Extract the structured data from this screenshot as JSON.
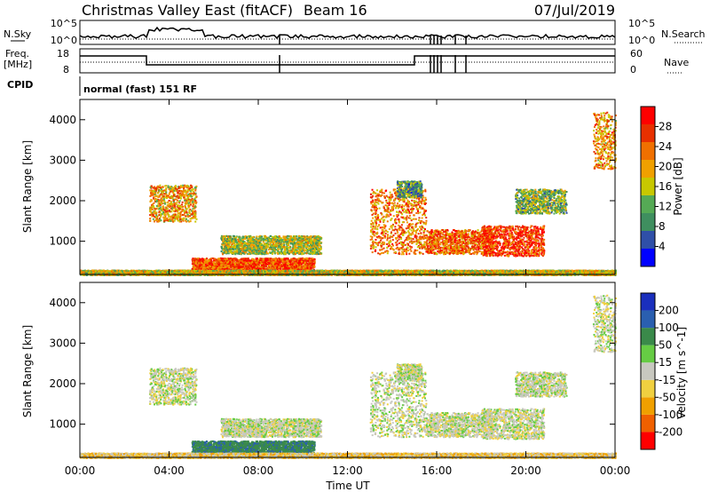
{
  "header": {
    "title": "Christmas Valley East (fitACF)",
    "beam": "Beam 16",
    "date": "07/Jul/2019"
  },
  "top_panels": {
    "nsky_label": "N.Sky",
    "nsearch_label": "N.Search",
    "noise_ticks": [
      "10^5",
      "10^0"
    ],
    "freq_label_1": "Freq.",
    "freq_label_2": "[MHz]",
    "freq_ticks": [
      "18",
      "8"
    ],
    "nave_label": "Nave",
    "nave_ticks": [
      "60",
      "0"
    ],
    "cpid_label": "CPID",
    "cpid_value": "normal (fast) 151 RF"
  },
  "colors": {
    "power": [
      "#0000ff",
      "#2f4fa8",
      "#3f8f5f",
      "#55aa55",
      "#c8c800",
      "#f0a000",
      "#f07000",
      "#e83000",
      "#ff0000"
    ],
    "velocity": [
      "#1a2fbd",
      "#2a5fb0",
      "#3a8a4a",
      "#66cc44",
      "#c8c8c0",
      "#f0d040",
      "#f0a000",
      "#f06000",
      "#ff0000"
    ],
    "ground": "#c8c8c0"
  },
  "chart_data": [
    {
      "type": "heatmap",
      "ylabel": "Slant Range [km]",
      "y_ticks": [
        "1000",
        "2000",
        "3000",
        "4000"
      ],
      "ylim": [
        180,
        4500
      ],
      "colorbar_label": "Power [dB]",
      "colorbar_ticks": [
        "4",
        "8",
        "12",
        "16",
        "20",
        "24",
        "28"
      ],
      "colorbar_range": [
        0,
        30
      ]
    },
    {
      "type": "heatmap",
      "ylabel": "Slant Range [km]",
      "y_ticks": [
        "1000",
        "2000",
        "3000",
        "4000"
      ],
      "ylim": [
        180,
        4500
      ],
      "colorbar_label": "Velocity [m s^-1]",
      "colorbar_ticks": [
        "200",
        "100",
        "50",
        "15",
        "-15",
        "-50",
        "-100",
        "-200"
      ],
      "xlabel": "Time UT",
      "x_ticks": [
        "00:00",
        "04:00",
        "08:00",
        "12:00",
        "16:00",
        "20:00",
        "00:00"
      ],
      "xlim": [
        0,
        24
      ]
    }
  ],
  "echo_regions": [
    {
      "t0": 5.0,
      "t1": 10.5,
      "r0": 300,
      "r1": 600,
      "p": 24,
      "v": 60
    },
    {
      "t0": 6.3,
      "t1": 10.8,
      "r0": 700,
      "r1": 1150,
      "p": 14,
      "v": 0
    },
    {
      "t0": 3.1,
      "t1": 5.2,
      "r0": 1500,
      "r1": 2400,
      "p": 19,
      "v": 0
    },
    {
      "t0": 13.0,
      "t1": 15.5,
      "r0": 700,
      "r1": 2300,
      "p": 21,
      "v": 0
    },
    {
      "t0": 15.5,
      "t1": 18.5,
      "r0": 700,
      "r1": 1300,
      "p": 22,
      "v": 0
    },
    {
      "t0": 18.0,
      "t1": 20.8,
      "r0": 650,
      "r1": 1400,
      "p": 25,
      "v": 0
    },
    {
      "t0": 19.5,
      "t1": 21.8,
      "r0": 1700,
      "r1": 2300,
      "p": 12,
      "v": 0
    },
    {
      "t0": 14.2,
      "t1": 15.3,
      "r0": 2100,
      "r1": 2500,
      "p": 10,
      "v": 0
    },
    {
      "t0": 23.0,
      "t1": 24.0,
      "r0": 2800,
      "r1": 4200,
      "p": 20,
      "v": 0
    },
    {
      "t0": 0.0,
      "t1": 24.0,
      "r0": 180,
      "r1": 300,
      "p": 16,
      "v": -20
    }
  ]
}
